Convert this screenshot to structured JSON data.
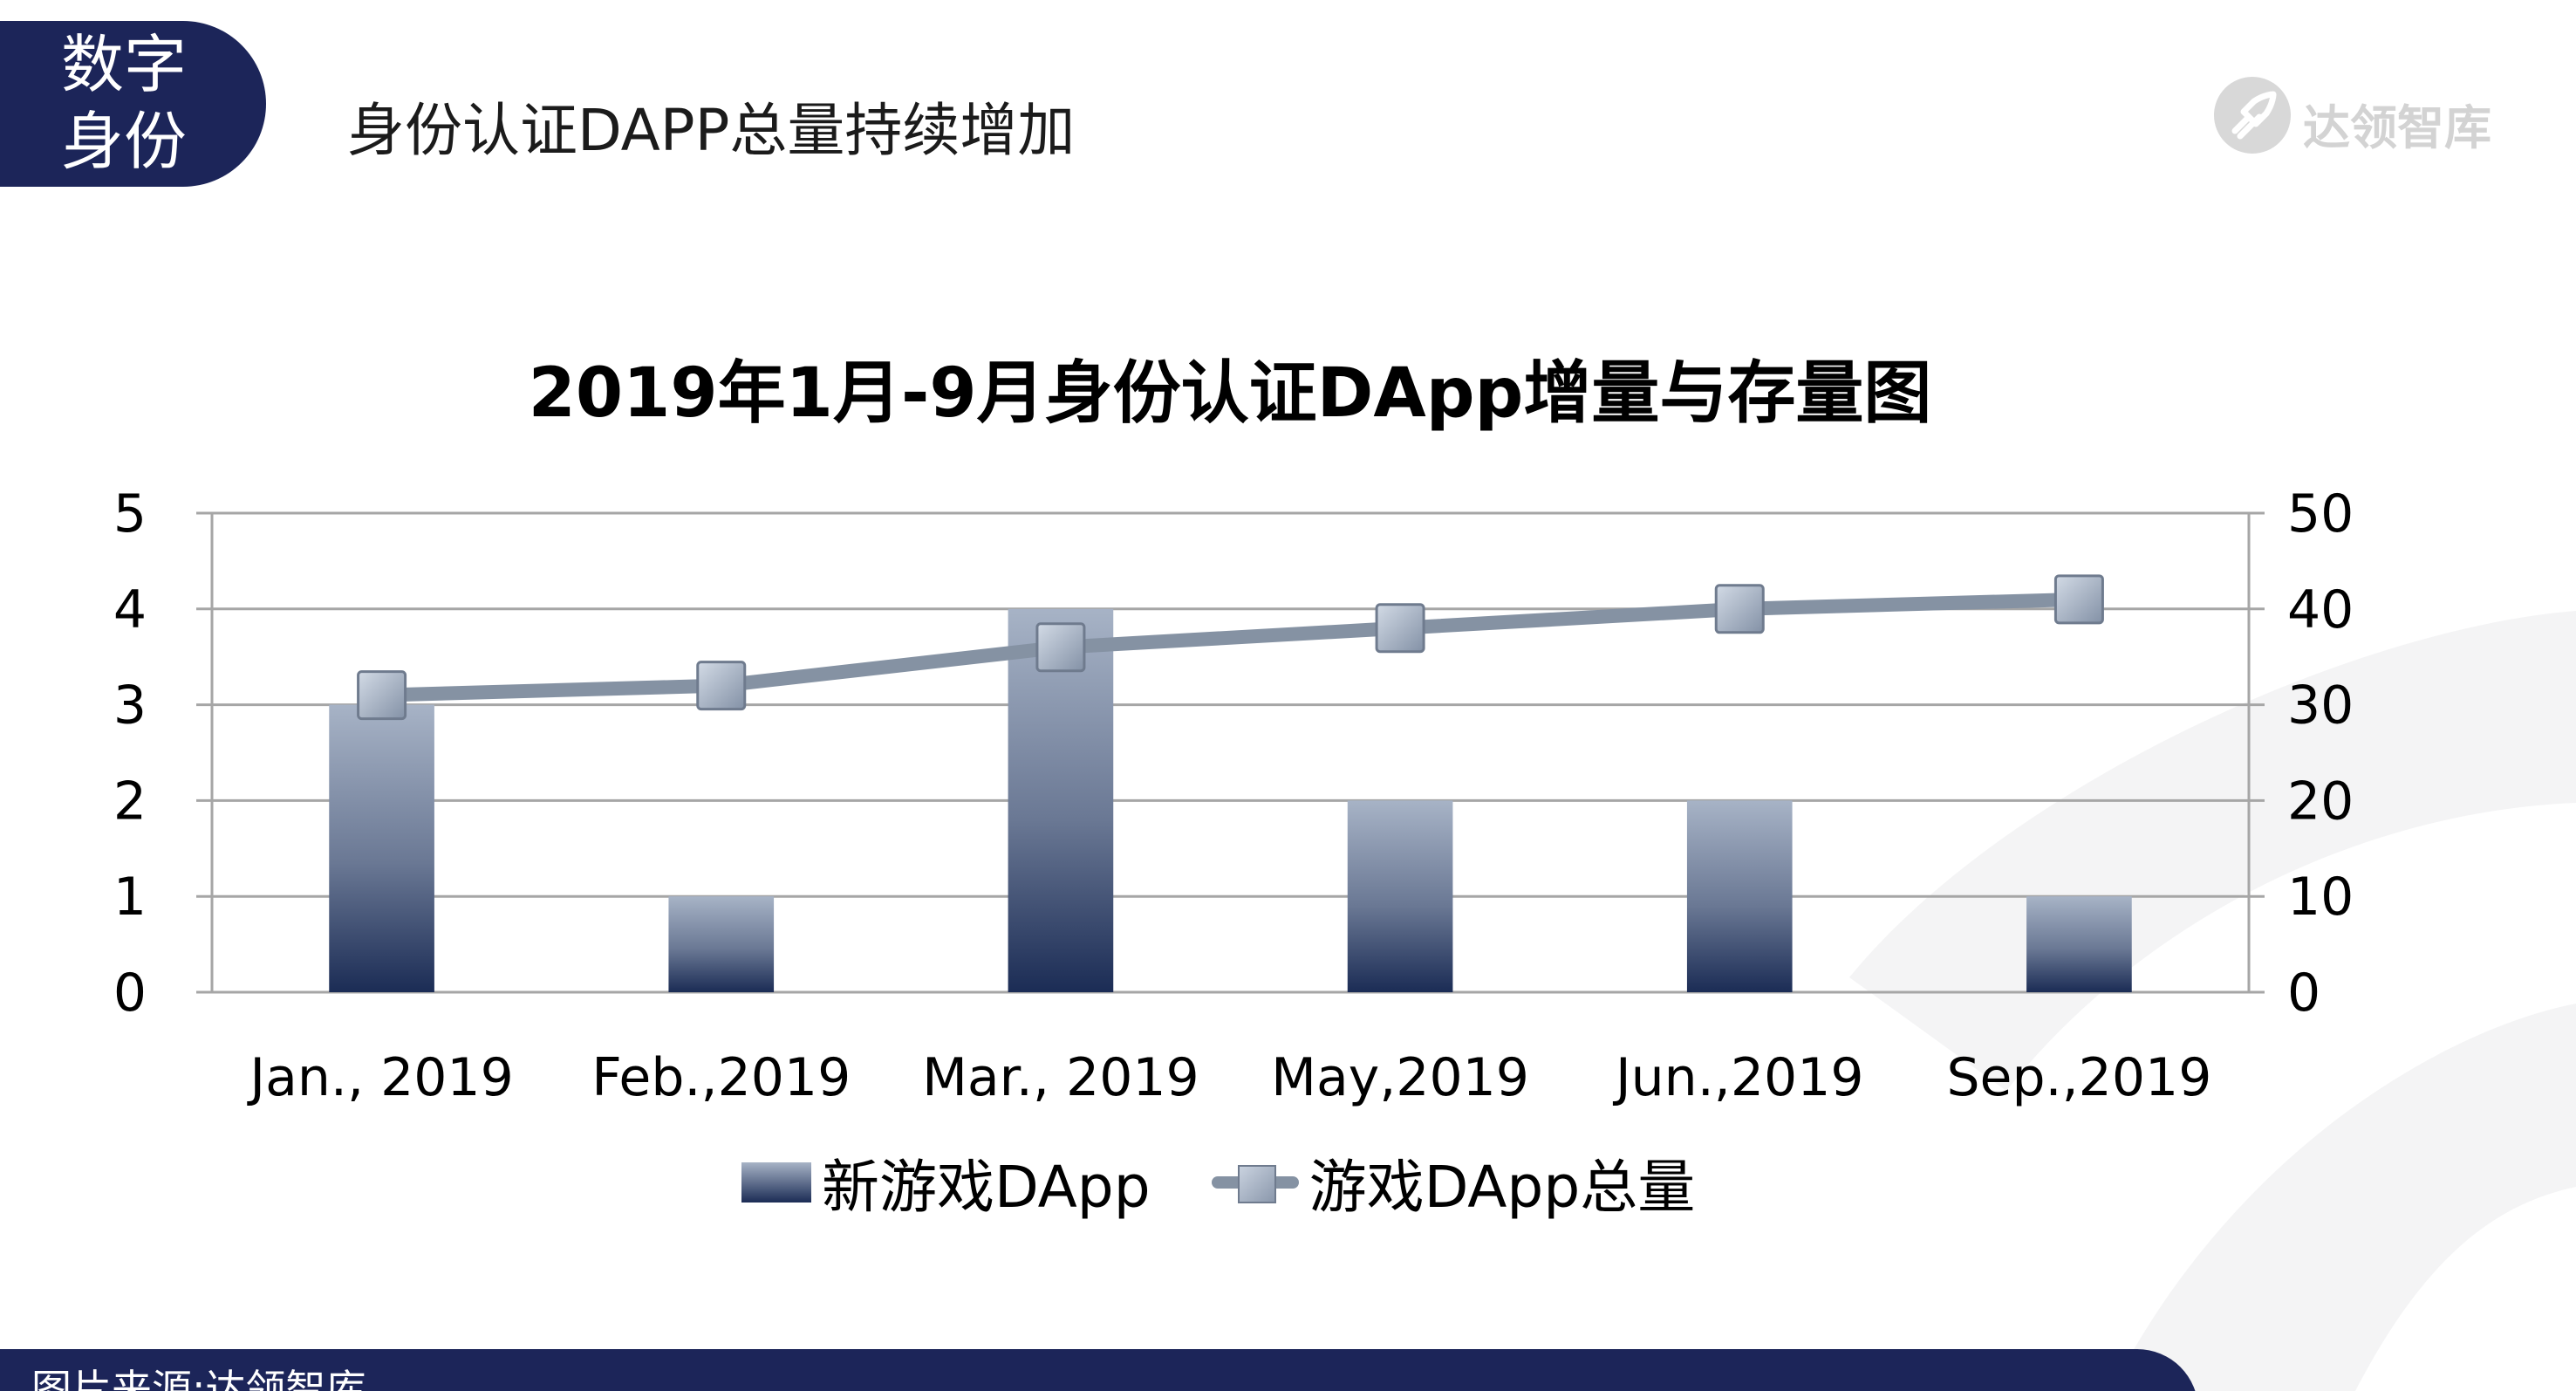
{
  "header": {
    "section_line1": "数字",
    "section_line2": "身份",
    "title": "身份认证DAPP总量持续增加",
    "logo_text": "达领智库"
  },
  "footer": {
    "source": "图片来源:达领智库"
  },
  "colors": {
    "navy": "#1c2559",
    "bar_top": "#a7b3c6",
    "bar_bottom": "#1b2c55",
    "line": "#8592a3",
    "grid": "#a6a6a6"
  },
  "chart_data": {
    "type": "bar",
    "title": "2019年1月-9月身份认证DApp增量与存量图",
    "categories": [
      "Jan., 2019",
      "Feb.,2019",
      "Mar., 2019",
      "May,2019",
      "Jun.,2019",
      "Sep.,2019"
    ],
    "series": [
      {
        "name": "新游戏DApp",
        "type": "bar",
        "axis": "left",
        "values": [
          3,
          1,
          4,
          2,
          2,
          1
        ]
      },
      {
        "name": "游戏DApp总量",
        "type": "line",
        "axis": "right",
        "values": [
          31,
          32,
          36,
          38,
          40,
          41
        ]
      }
    ],
    "ylim_left": [
      0,
      5
    ],
    "yticks_left": [
      "0",
      "1",
      "2",
      "3",
      "4",
      "5"
    ],
    "ylim_right": [
      0,
      50
    ],
    "yticks_right": [
      "0",
      "10",
      "20",
      "30",
      "40",
      "50"
    ],
    "xlabel": "",
    "ylabel": "",
    "grid": true,
    "legend": "bottom"
  }
}
